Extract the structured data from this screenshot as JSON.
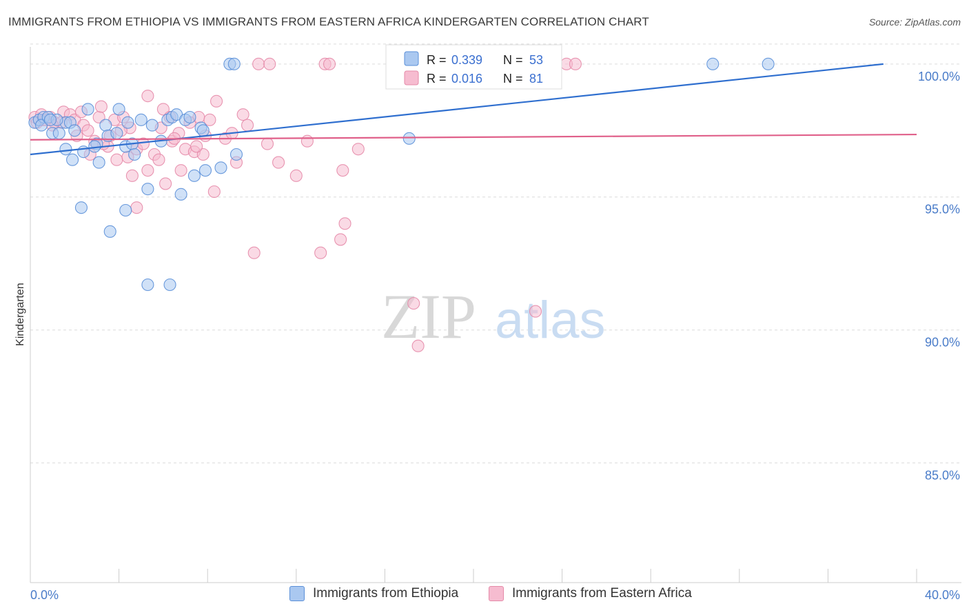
{
  "header": {
    "title": "IMMIGRANTS FROM ETHIOPIA VS IMMIGRANTS FROM EASTERN AFRICA KINDERGARTEN CORRELATION CHART",
    "source": "Source: ZipAtlas.com"
  },
  "watermark": {
    "zip": "ZIP",
    "atlas": "atlas"
  },
  "legend": {
    "r_label": "R =",
    "n_label": "N =",
    "rows": [
      {
        "r": "0.339",
        "n": "53"
      },
      {
        "r": "0.016",
        "n": "81"
      }
    ]
  },
  "colors": {
    "ethiopia_fill": "#aac8f0",
    "ethiopia_stroke": "#5a8fd8",
    "ethiopia_line": "#2f6fcf",
    "eastern_africa_fill": "#f6bcd0",
    "eastern_africa_stroke": "#e58aa8",
    "eastern_africa_line": "#e0608a",
    "tick_color": "#4a7cc9"
  },
  "chart_data": {
    "type": "scatter",
    "title": "IMMIGRANTS FROM ETHIOPIA VS IMMIGRANTS FROM EASTERN AFRICA KINDERGARTEN CORRELATION CHART",
    "xlabel": "",
    "ylabel": "Kindergarten",
    "xlim": [
      0,
      40
    ],
    "ylim": [
      80.5,
      100.8
    ],
    "x_tick_labels": [
      "0.0%",
      "40.0%"
    ],
    "y_ticks": [
      {
        "value": 100,
        "label": "100.0%"
      },
      {
        "value": 95,
        "label": "95.0%"
      },
      {
        "value": 90,
        "label": "90.0%"
      },
      {
        "value": 85,
        "label": "85.0%"
      }
    ],
    "grid": "horizontal dashed",
    "legend_position": "top-center",
    "series": [
      {
        "name": "Immigrants from Ethiopia",
        "color": "#5a8fd8",
        "trend": {
          "x": [
            0,
            38.5
          ],
          "y": [
            96.6,
            100.0
          ]
        },
        "points": [
          [
            0.2,
            97.8
          ],
          [
            0.4,
            97.9
          ],
          [
            0.6,
            98.0
          ],
          [
            0.5,
            97.7
          ],
          [
            0.8,
            98.0
          ],
          [
            1.0,
            97.4
          ],
          [
            1.3,
            97.4
          ],
          [
            1.6,
            97.8
          ],
          [
            1.8,
            97.8
          ],
          [
            2.0,
            97.5
          ],
          [
            1.6,
            96.8
          ],
          [
            1.9,
            96.4
          ],
          [
            2.4,
            96.7
          ],
          [
            2.6,
            98.3
          ],
          [
            3.0,
            97.0
          ],
          [
            3.1,
            96.3
          ],
          [
            3.4,
            97.7
          ],
          [
            3.5,
            97.3
          ],
          [
            3.9,
            97.4
          ],
          [
            4.0,
            98.3
          ],
          [
            4.3,
            96.9
          ],
          [
            4.4,
            97.8
          ],
          [
            4.6,
            97.0
          ],
          [
            4.7,
            96.6
          ],
          [
            5.0,
            97.9
          ],
          [
            5.3,
            95.3
          ],
          [
            5.5,
            97.7
          ],
          [
            5.9,
            97.1
          ],
          [
            6.2,
            97.9
          ],
          [
            6.4,
            98.0
          ],
          [
            6.6,
            98.1
          ],
          [
            6.8,
            95.1
          ],
          [
            7.0,
            97.9
          ],
          [
            7.2,
            98.0
          ],
          [
            7.4,
            95.8
          ],
          [
            7.7,
            97.6
          ],
          [
            7.8,
            97.5
          ],
          [
            7.9,
            96.0
          ],
          [
            8.6,
            96.1
          ],
          [
            9.0,
            100.0
          ],
          [
            9.2,
            100.0
          ],
          [
            9.3,
            96.6
          ],
          [
            2.3,
            94.6
          ],
          [
            4.3,
            94.5
          ],
          [
            3.6,
            93.7
          ],
          [
            5.3,
            91.7
          ],
          [
            6.3,
            91.7
          ],
          [
            17.1,
            97.2
          ],
          [
            30.8,
            100.0
          ],
          [
            33.3,
            100.0
          ],
          [
            1.2,
            97.9
          ],
          [
            2.9,
            96.9
          ],
          [
            0.9,
            97.9
          ]
        ]
      },
      {
        "name": "Immigrants from Eastern Africa",
        "color": "#e58aa8",
        "trend": {
          "x": [
            0,
            40
          ],
          "y": [
            97.15,
            97.35
          ]
        },
        "points": [
          [
            0.2,
            98.0
          ],
          [
            0.3,
            97.8
          ],
          [
            0.5,
            98.1
          ],
          [
            0.6,
            97.9
          ],
          [
            0.9,
            98.0
          ],
          [
            1.1,
            97.8
          ],
          [
            1.4,
            97.8
          ],
          [
            1.5,
            98.2
          ],
          [
            1.8,
            98.1
          ],
          [
            2.0,
            97.9
          ],
          [
            2.1,
            97.3
          ],
          [
            2.4,
            97.7
          ],
          [
            2.6,
            97.5
          ],
          [
            2.7,
            96.6
          ],
          [
            2.9,
            97.1
          ],
          [
            3.1,
            98.0
          ],
          [
            3.2,
            98.4
          ],
          [
            3.5,
            96.9
          ],
          [
            3.6,
            97.3
          ],
          [
            3.8,
            97.9
          ],
          [
            3.9,
            96.4
          ],
          [
            4.2,
            98.0
          ],
          [
            4.4,
            96.5
          ],
          [
            4.5,
            97.6
          ],
          [
            4.6,
            95.8
          ],
          [
            4.8,
            96.8
          ],
          [
            5.1,
            97.0
          ],
          [
            5.3,
            96.0
          ],
          [
            5.3,
            98.8
          ],
          [
            5.6,
            96.6
          ],
          [
            5.8,
            96.4
          ],
          [
            6.0,
            98.3
          ],
          [
            6.1,
            95.5
          ],
          [
            6.3,
            98.0
          ],
          [
            6.4,
            97.1
          ],
          [
            6.7,
            97.4
          ],
          [
            6.8,
            96.0
          ],
          [
            7.0,
            96.8
          ],
          [
            7.2,
            97.8
          ],
          [
            7.4,
            96.7
          ],
          [
            7.6,
            98.0
          ],
          [
            7.8,
            96.6
          ],
          [
            7.9,
            97.3
          ],
          [
            8.1,
            97.9
          ],
          [
            8.4,
            98.6
          ],
          [
            8.8,
            97.2
          ],
          [
            9.3,
            96.3
          ],
          [
            9.6,
            98.1
          ],
          [
            9.8,
            97.7
          ],
          [
            10.1,
            92.9
          ],
          [
            10.3,
            100.0
          ],
          [
            10.7,
            97.0
          ],
          [
            10.8,
            100.0
          ],
          [
            11.2,
            96.3
          ],
          [
            12.0,
            95.8
          ],
          [
            13.3,
            100.0
          ],
          [
            13.5,
            100.0
          ],
          [
            14.0,
            93.4
          ],
          [
            14.1,
            96.0
          ],
          [
            14.2,
            94.0
          ],
          [
            14.8,
            96.8
          ],
          [
            16.4,
            100.0
          ],
          [
            17.3,
            91.0
          ],
          [
            17.5,
            89.4
          ],
          [
            22.8,
            90.7
          ],
          [
            23.1,
            100.0
          ],
          [
            24.2,
            100.0
          ],
          [
            24.6,
            100.0
          ],
          [
            4.8,
            94.6
          ],
          [
            8.3,
            95.2
          ],
          [
            13.1,
            92.9
          ],
          [
            1.0,
            97.7
          ],
          [
            0.7,
            97.9
          ],
          [
            2.3,
            98.2
          ],
          [
            3.3,
            97.0
          ],
          [
            6.5,
            97.2
          ],
          [
            7.5,
            96.9
          ],
          [
            5.9,
            97.6
          ],
          [
            4.1,
            97.5
          ],
          [
            9.1,
            97.4
          ],
          [
            12.5,
            97.1
          ]
        ]
      }
    ]
  },
  "bottom_legend": {
    "ethiopia": "Immigrants from Ethiopia",
    "eastern_africa": "Immigrants from Eastern Africa"
  }
}
